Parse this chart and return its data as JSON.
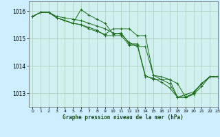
{
  "background_color": "#cceeff",
  "plot_bg_color": "#cff0ee",
  "grid_color": "#aaccbb",
  "line_color": "#1a6b1a",
  "marker_color": "#1a6b1a",
  "xlabel": "Graphe pression niveau de la mer (hPa)",
  "ylim": [
    1012.5,
    1016.35
  ],
  "xlim": [
    -0.5,
    23
  ],
  "yticks": [
    1013,
    1014,
    1015,
    1016
  ],
  "xticks": [
    0,
    1,
    2,
    3,
    4,
    5,
    6,
    7,
    8,
    9,
    10,
    11,
    12,
    13,
    14,
    15,
    16,
    17,
    18,
    19,
    20,
    21,
    22,
    23
  ],
  "series": [
    [
      1015.8,
      1015.95,
      1015.95,
      1015.8,
      1015.75,
      1015.7,
      1015.65,
      1015.55,
      1015.45,
      1015.35,
      1015.2,
      1015.15,
      1014.85,
      1014.7,
      1014.7,
      1013.65,
      1013.5,
      1013.5,
      1012.85,
      1012.85,
      1012.95,
      1013.25,
      1013.6,
      1013.6
    ],
    [
      1015.8,
      1015.95,
      1015.95,
      1015.75,
      1015.65,
      1015.55,
      1016.05,
      1015.85,
      1015.7,
      1015.55,
      1015.15,
      1015.2,
      1014.8,
      1014.8,
      1013.65,
      1013.5,
      1013.5,
      1013.35,
      1012.85,
      1012.95,
      1013.05,
      1013.35,
      1013.6,
      1013.6
    ],
    [
      1015.8,
      1015.95,
      1015.95,
      1015.75,
      1015.65,
      1015.55,
      1015.5,
      1015.35,
      1015.25,
      1015.15,
      1015.35,
      1015.35,
      1015.35,
      1015.1,
      1015.1,
      1013.65,
      1013.6,
      1013.5,
      1013.35,
      1012.85,
      1013.0,
      1013.35,
      1013.6,
      1013.6
    ],
    [
      1015.8,
      1015.95,
      1015.95,
      1015.75,
      1015.65,
      1015.55,
      1015.5,
      1015.4,
      1015.3,
      1015.1,
      1015.1,
      1015.1,
      1014.75,
      1014.75,
      1013.6,
      1013.55,
      1013.4,
      1013.2,
      1012.85,
      1012.85,
      1013.0,
      1013.35,
      1013.6,
      1013.6
    ]
  ]
}
